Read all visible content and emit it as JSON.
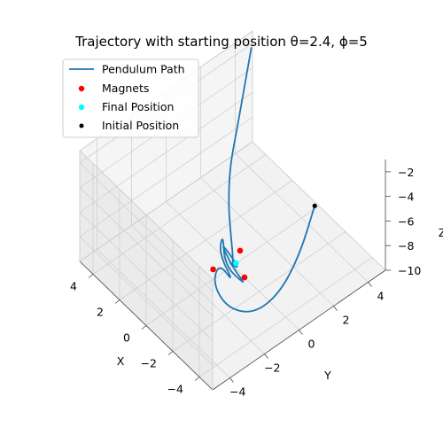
{
  "chart_data": {
    "type": "line",
    "projection": "3d",
    "title": "Trajectory with starting position θ=2.4, ϕ=5",
    "xlabel": "X",
    "ylabel": "Y",
    "zlabel": "Z",
    "xlim": [
      -5,
      5
    ],
    "ylim": [
      -5,
      5
    ],
    "zlim": [
      -10,
      -1
    ],
    "xticks": [
      "−4",
      "−2",
      "0",
      "2",
      "4"
    ],
    "yticks": [
      "−4",
      "−2",
      "0",
      "2",
      "4"
    ],
    "zticks": [
      "−10",
      "−8",
      "−6",
      "−4",
      "−2"
    ],
    "grid": true,
    "legend_position": "top-left",
    "legend": [
      {
        "label": "Pendulum Path",
        "kind": "line",
        "color": "#1f77b4"
      },
      {
        "label": "Magnets",
        "kind": "marker",
        "color": "#ff0000"
      },
      {
        "label": "Final Position",
        "kind": "marker",
        "color": "#00ffff"
      },
      {
        "label": "Initial Position",
        "kind": "marker",
        "color": "#000000"
      }
    ],
    "series": [
      {
        "name": "Pendulum Path",
        "color": "#1f77b4",
        "points": [
          [
            -4.1,
            1.6,
            -2.4
          ],
          [
            -4.4,
            0.5,
            -5.0
          ],
          [
            -4.3,
            -0.6,
            -7.2
          ],
          [
            -3.4,
            -1.4,
            -9.0
          ],
          [
            -1.8,
            -1.7,
            -9.9
          ],
          [
            -0.2,
            -1.3,
            -9.95
          ],
          [
            0.5,
            -0.4,
            -9.9
          ],
          [
            -0.9,
            -0.6,
            -9.92
          ],
          [
            0.9,
            -0.1,
            -9.8
          ],
          [
            1.5,
            0.6,
            -9.5
          ],
          [
            0.2,
            -0.3,
            -9.95
          ],
          [
            -1.5,
            -0.3,
            -9.82
          ],
          [
            -0.2,
            -0.1,
            -9.96
          ],
          [
            1.4,
            0.3,
            -9.6
          ],
          [
            -0.5,
            0.1,
            -9.95
          ],
          [
            0.3,
            0.0,
            -9.98
          ],
          [
            -0.1,
            0.0,
            -9.99
          ],
          [
            1.2,
            0.8,
            -9.2
          ],
          [
            2.0,
            1.3,
            -8.3
          ],
          [
            2.8,
            2.0,
            -6.8
          ],
          [
            3.3,
            2.8,
            -5.0
          ],
          [
            3.8,
            3.6,
            -3.0
          ],
          [
            4.3,
            4.4,
            -1.0
          ]
        ]
      }
    ],
    "magnets": [
      [
        0.45,
        0.78,
        -10
      ],
      [
        -0.9,
        0.0,
        -10
      ],
      [
        0.45,
        -0.78,
        -10
      ]
    ],
    "final_position": [
      0.0,
      0.2,
      -9.98
    ],
    "initial_position": [
      -4.1,
      1.6,
      -2.4
    ]
  }
}
